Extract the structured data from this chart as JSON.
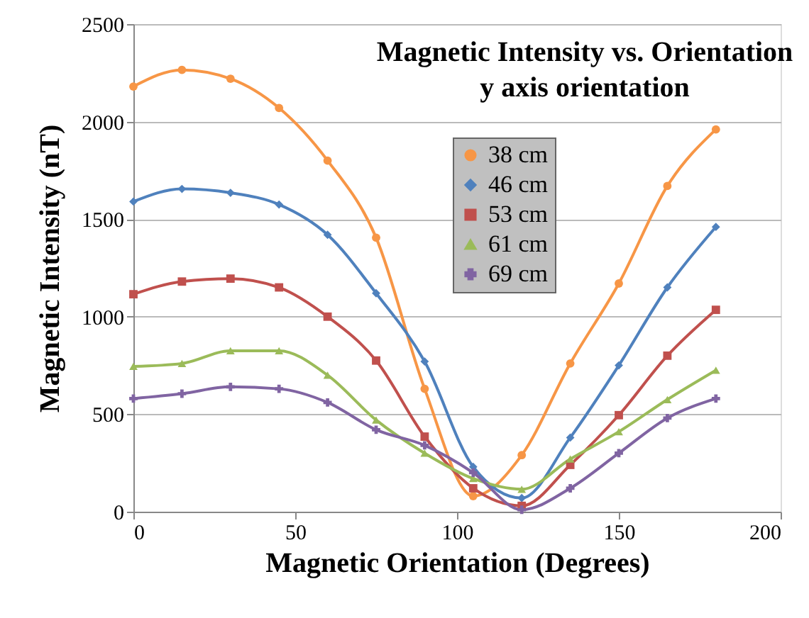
{
  "chart_data": {
    "type": "line",
    "title": "Magnetic Intensity vs. Orientation",
    "subtitle": "y axis orientation",
    "xlabel": "Magnetic Orientation (Degrees)",
    "ylabel": "Magnetic Intensity (nT)",
    "x": [
      0,
      15,
      30,
      45,
      60,
      75,
      90,
      105,
      120,
      135,
      150,
      165,
      180
    ],
    "xlim": [
      0,
      200
    ],
    "xticks": [
      0,
      50,
      100,
      150,
      200
    ],
    "ylim": [
      0,
      2500
    ],
    "yticks": [
      0,
      500,
      1000,
      1500,
      2000,
      2500
    ],
    "grid": "y",
    "legend": "top",
    "line_style": "solid",
    "series": [
      {
        "name": "38 cm",
        "color": "#f79646",
        "marker": "circle",
        "values": [
          2180,
          2265,
          2220,
          2070,
          1800,
          1405,
          630,
          80,
          290,
          760,
          1170,
          1670,
          1960
        ]
      },
      {
        "name": "46 cm",
        "color": "#4f81bd",
        "marker": "diamond",
        "values": [
          1590,
          1655,
          1635,
          1575,
          1420,
          1120,
          770,
          230,
          70,
          380,
          750,
          1150,
          1460
        ]
      },
      {
        "name": "53 cm",
        "color": "#c0504d",
        "marker": "square",
        "values": [
          1115,
          1180,
          1195,
          1150,
          1000,
          775,
          385,
          120,
          30,
          240,
          495,
          800,
          1035
        ]
      },
      {
        "name": "61 cm",
        "color": "#9bbb59",
        "marker": "triangle",
        "values": [
          745,
          760,
          825,
          825,
          700,
          470,
          300,
          170,
          115,
          270,
          410,
          575,
          725
        ]
      },
      {
        "name": "69 cm",
        "color": "#8064a2",
        "marker": "cross",
        "values": [
          580,
          605,
          640,
          630,
          560,
          420,
          340,
          200,
          10,
          120,
          300,
          480,
          580
        ]
      }
    ]
  }
}
